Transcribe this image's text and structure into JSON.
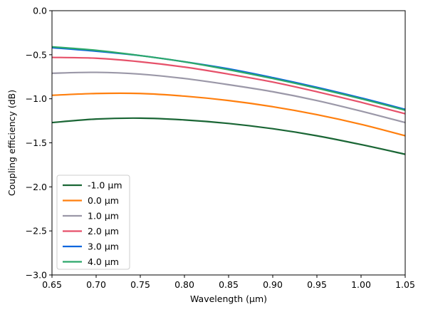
{
  "chart_data": {
    "type": "line",
    "title": "",
    "xlabel": "Wavelength (μm)",
    "ylabel": "Coupling efficiency (dB)",
    "xlim": [
      0.65,
      1.05
    ],
    "ylim": [
      -3.0,
      0.0
    ],
    "xticks": [
      "0.65",
      "0.70",
      "0.75",
      "0.80",
      "0.85",
      "0.90",
      "0.95",
      "1.00",
      "1.05"
    ],
    "yticks": [
      "−3.0",
      "−2.5",
      "−2.0",
      "−1.5",
      "−1.0",
      "−0.5",
      "0.0"
    ],
    "x": [
      0.65,
      0.7,
      0.75,
      0.8,
      0.85,
      0.9,
      0.95,
      1.0,
      1.05
    ],
    "grid": false,
    "legend_position": "lower-left",
    "series": [
      {
        "name": "-1.0 μm",
        "color": "#1a6635",
        "values": [
          -1.27,
          -1.23,
          -1.22,
          -1.24,
          -1.28,
          -1.34,
          -1.42,
          -1.52,
          -1.63
        ]
      },
      {
        "name": "0.0 μm",
        "color": "#ff7f0e",
        "values": [
          -0.96,
          -0.94,
          -0.94,
          -0.97,
          -1.02,
          -1.09,
          -1.18,
          -1.29,
          -1.42
        ]
      },
      {
        "name": "1.0 μm",
        "color": "#9b98a8",
        "values": [
          -0.71,
          -0.7,
          -0.72,
          -0.77,
          -0.84,
          -0.92,
          -1.02,
          -1.14,
          -1.27
        ]
      },
      {
        "name": "2.0 μm",
        "color": "#e6516a",
        "values": [
          -0.53,
          -0.54,
          -0.58,
          -0.64,
          -0.72,
          -0.81,
          -0.92,
          -1.04,
          -1.17
        ]
      },
      {
        "name": "3.0 μm",
        "color": "#0b66de",
        "values": [
          -0.42,
          -0.46,
          -0.51,
          -0.58,
          -0.66,
          -0.76,
          -0.87,
          -0.99,
          -1.12
        ]
      },
      {
        "name": "4.0 μm",
        "color": "#2ca86a",
        "values": [
          -0.41,
          -0.45,
          -0.51,
          -0.58,
          -0.67,
          -0.77,
          -0.88,
          -1.0,
          -1.13
        ]
      }
    ]
  }
}
